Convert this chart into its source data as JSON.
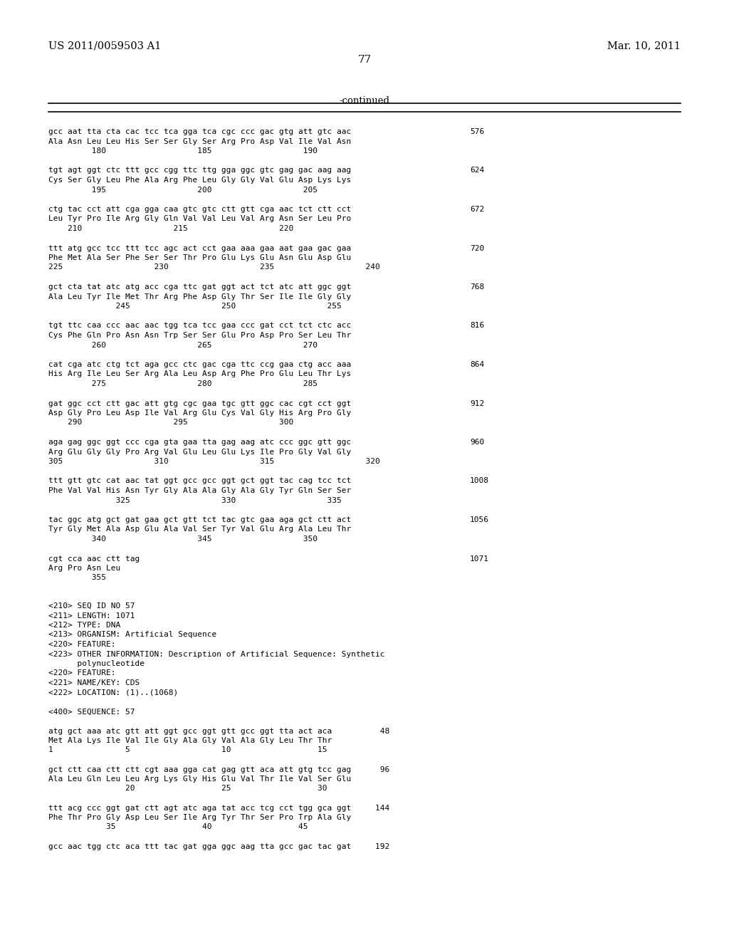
{
  "header_left": "US 2011/0059503 A1",
  "header_right": "Mar. 10, 2011",
  "page_number": "77",
  "continued_label": "-continued",
  "background_color": "#ffffff",
  "text_color": "#000000",
  "content_blocks": [
    {
      "dna": "gcc aat tta cta cac tcc tca gga tca cgc ccc gac gtg att gtc aac",
      "aa": "Ala Asn Leu Leu His Ser Ser Gly Ser Arg Pro Asp Val Ile Val Asn",
      "nums": "         180                   185                   190",
      "num_right": "576"
    },
    {
      "dna": "tgt agt ggt ctc ttt gcc cgg ttc ttg gga ggc gtc gag gac aag aag",
      "aa": "Cys Ser Gly Leu Phe Ala Arg Phe Leu Gly Gly Val Glu Asp Lys Lys",
      "nums": "         195                   200                   205",
      "num_right": "624"
    },
    {
      "dna": "ctg tac cct att cga gga caa gtc gtc ctt gtt cga aac tct ctt cct",
      "aa": "Leu Tyr Pro Ile Arg Gly Gln Val Val Leu Val Arg Asn Ser Leu Pro",
      "nums": "    210                   215                   220",
      "num_right": "672"
    },
    {
      "dna": "ttt atg gcc tcc ttt tcc agc act cct gaa aaa gaa aat gaa gac gaa",
      "aa": "Phe Met Ala Ser Phe Ser Ser Thr Pro Glu Lys Glu Asn Glu Asp Glu",
      "nums": "225                   230                   235                   240",
      "num_right": "720"
    },
    {
      "dna": "gct cta tat atc atg acc cga ttc gat ggt act tct atc att ggc ggt",
      "aa": "Ala Leu Tyr Ile Met Thr Arg Phe Asp Gly Thr Ser Ile Ile Gly Gly",
      "nums": "              245                   250                   255",
      "num_right": "768"
    },
    {
      "dna": "tgt ttc caa ccc aac aac tgg tca tcc gaa ccc gat cct tct ctc acc",
      "aa": "Cys Phe Gln Pro Asn Asn Trp Ser Ser Glu Pro Asp Pro Ser Leu Thr",
      "nums": "         260                   265                   270",
      "num_right": "816"
    },
    {
      "dna": "cat cga atc ctg tct aga gcc ctc gac cga ttc ccg gaa ctg acc aaa",
      "aa": "His Arg Ile Leu Ser Arg Ala Leu Asp Arg Phe Pro Glu Leu Thr Lys",
      "nums": "         275                   280                   285",
      "num_right": "864"
    },
    {
      "dna": "gat ggc cct ctt gac att gtg cgc gaa tgc gtt ggc cac cgt cct ggt",
      "aa": "Asp Gly Pro Leu Asp Ile Val Arg Glu Cys Val Gly His Arg Pro Gly",
      "nums": "    290                   295                   300",
      "num_right": "912"
    },
    {
      "dna": "aga gag ggc ggt ccc cga gta gaa tta gag aag atc ccc ggc gtt ggc",
      "aa": "Arg Glu Gly Gly Pro Arg Val Glu Leu Glu Lys Ile Pro Gly Val Gly",
      "nums": "305                   310                   315                   320",
      "num_right": "960"
    },
    {
      "dna": "ttt gtt gtc cat aac tat ggt gcc gcc ggt gct ggt tac cag tcc tct",
      "aa": "Phe Val Val His Asn Tyr Gly Ala Ala Gly Ala Gly Tyr Gln Ser Ser",
      "nums": "              325                   330                   335",
      "num_right": "1008"
    },
    {
      "dna": "tac ggc atg gct gat gaa gct gtt tct tac gtc gaa aga gct ctt act",
      "aa": "Tyr Gly Met Ala Asp Glu Ala Val Ser Tyr Val Glu Arg Ala Leu Thr",
      "nums": "         340                   345                   350",
      "num_right": "1056"
    },
    {
      "dna": "cgt cca aac ctt tag",
      "aa": "Arg Pro Asn Leu",
      "nums": "         355",
      "num_right": "1071"
    }
  ],
  "metadata_lines": [
    "<210> SEQ ID NO 57",
    "<211> LENGTH: 1071",
    "<212> TYPE: DNA",
    "<213> ORGANISM: Artificial Sequence",
    "<220> FEATURE:",
    "<223> OTHER INFORMATION: Description of Artificial Sequence: Synthetic",
    "      polynucleotide",
    "<220> FEATURE:",
    "<221> NAME/KEY: CDS",
    "<222> LOCATION: (1)..(1068)",
    "",
    "<400> SEQUENCE: 57",
    "",
    "atg gct aaa atc gtt att ggt gcc ggt gtt gcc ggt tta act aca          48",
    "Met Ala Lys Ile Val Ile Gly Ala Gly Val Ala Gly Leu Thr Thr",
    "1               5                   10                  15",
    "",
    "gct ctt caa ctt ctt cgt aaa gga cat gag gtt aca att gtg tcc gag      96",
    "Ala Leu Gln Leu Leu Arg Lys Gly His Glu Val Thr Ile Val Ser Glu",
    "                20                  25                  30",
    "",
    "ttt acg ccc ggt gat ctt agt atc aga tat acc tcg cct tgg gca ggt     144",
    "Phe Thr Pro Gly Asp Leu Ser Ile Arg Tyr Thr Ser Pro Trp Ala Gly",
    "            35                  40                  45",
    "",
    "gcc aac tgg ctc aca ttt tac gat gga ggc aag tta gcc gac tac gat     192"
  ]
}
